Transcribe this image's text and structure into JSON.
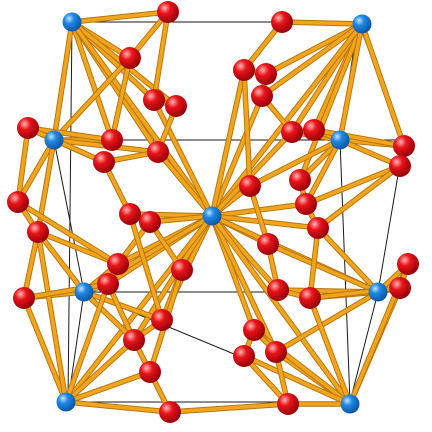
{
  "figure": {
    "subject": "crystal-structure",
    "background_color": "#ffffff",
    "bond_color": "#f0a51e",
    "cell_edge_color": "#1a1a1a"
  },
  "atom_types": [
    {
      "key": "blue",
      "color": "#1e88e5",
      "highlight": "#bfe3ff",
      "shade": "#0b4f9a"
    },
    {
      "key": "red",
      "color": "#e8141a",
      "highlight": "#ffb3b3",
      "shade": "#8a0006"
    }
  ]
}
